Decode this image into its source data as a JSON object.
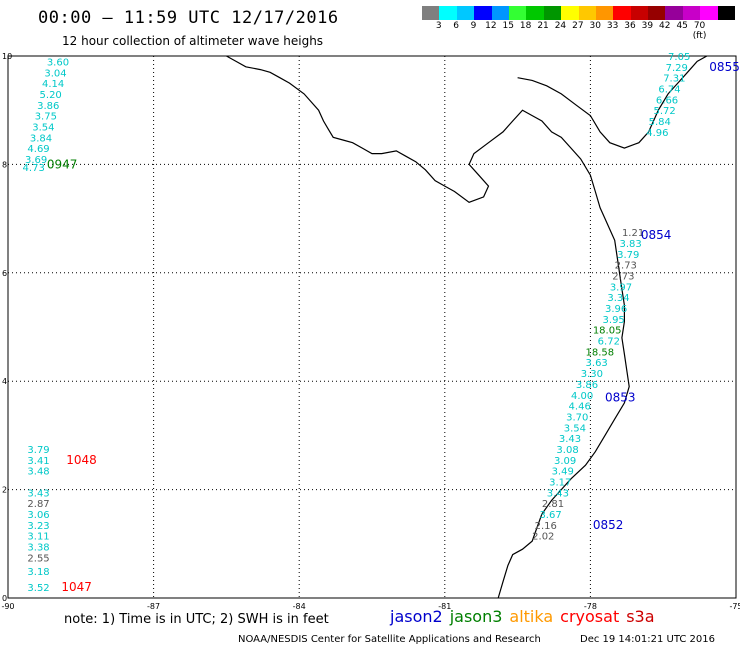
{
  "header": {
    "title": "00:00 – 11:59 UTC 12/17/2016",
    "subtitle": "12 hour collection of altimeter wave heighs"
  },
  "colorbar": {
    "colors": [
      "#7f7f7f",
      "#00ffff",
      "#00c8ff",
      "#0000ff",
      "#0096ff",
      "#33ff33",
      "#00c800",
      "#009600",
      "#ffff00",
      "#ffc800",
      "#ff9600",
      "#ff0000",
      "#c80000",
      "#960000",
      "#96009a",
      "#c800c8",
      "#ff00ff",
      "#000000"
    ],
    "labels": [
      "3",
      "6",
      "9",
      "12",
      "15",
      "18",
      "21",
      "24",
      "27",
      "30",
      "33",
      "36",
      "39",
      "42",
      "45",
      "70 (ft)"
    ]
  },
  "axes": {
    "lon_ticks": [
      "-90",
      "-87",
      "-84",
      "-81",
      "-78",
      "-75"
    ],
    "lat_ticks": [
      "0",
      "2",
      "4",
      "6",
      "8",
      "10"
    ]
  },
  "satellite_colors": {
    "jason2": "#0000cc",
    "jason3": "#007f00",
    "altika": "#ff9900",
    "cryosat": "#ff0000",
    "s3a": "#cc0000",
    "value_cyan": "#00c8c8",
    "value_gray": "#555555"
  },
  "tracks": [
    {
      "time": "0947",
      "color": "#007f00",
      "lon": -89.2,
      "lat": 8.0,
      "values": [
        {
          "v": "3.60",
          "lon": -89.2,
          "lat": 9.9,
          "c": "cyan"
        },
        {
          "v": "3.04",
          "lon": -89.25,
          "lat": 9.7,
          "c": "cyan"
        },
        {
          "v": "4.14",
          "lon": -89.3,
          "lat": 9.5,
          "c": "cyan"
        },
        {
          "v": "5.20",
          "lon": -89.35,
          "lat": 9.3,
          "c": "cyan"
        },
        {
          "v": "3.86",
          "lon": -89.4,
          "lat": 9.1,
          "c": "cyan"
        },
        {
          "v": "3.75",
          "lon": -89.45,
          "lat": 8.9,
          "c": "cyan"
        },
        {
          "v": "3.54",
          "lon": -89.5,
          "lat": 8.7,
          "c": "cyan"
        },
        {
          "v": "3.84",
          "lon": -89.55,
          "lat": 8.5,
          "c": "cyan"
        },
        {
          "v": "4.69",
          "lon": -89.6,
          "lat": 8.3,
          "c": "cyan"
        },
        {
          "v": "3.69",
          "lon": -89.65,
          "lat": 8.1,
          "c": "cyan"
        },
        {
          "v": "4.73",
          "lon": -89.7,
          "lat": 7.95,
          "c": "cyan"
        }
      ]
    },
    {
      "time": "0855",
      "color": "#0000cc",
      "lon": -75.55,
      "lat": 9.8,
      "values": [
        {
          "v": "7.05",
          "lon": -76.4,
          "lat": 10.0,
          "c": "cyan"
        },
        {
          "v": "7.29",
          "lon": -76.45,
          "lat": 9.8,
          "c": "cyan"
        },
        {
          "v": "7.31",
          "lon": -76.5,
          "lat": 9.6,
          "c": "cyan"
        },
        {
          "v": "6.74",
          "lon": -76.6,
          "lat": 9.4,
          "c": "cyan"
        },
        {
          "v": "6.66",
          "lon": -76.65,
          "lat": 9.2,
          "c": "cyan"
        },
        {
          "v": "5.72",
          "lon": -76.7,
          "lat": 9.0,
          "c": "cyan"
        },
        {
          "v": "5.84",
          "lon": -76.8,
          "lat": 8.8,
          "c": "cyan"
        },
        {
          "v": "4.96",
          "lon": -76.85,
          "lat": 8.6,
          "c": "cyan"
        }
      ]
    },
    {
      "time": "0854",
      "color": "#0000cc",
      "lon": -76.96,
      "lat": 6.7,
      "values": [
        {
          "v": "1.21",
          "lon": -77.35,
          "lat": 6.75,
          "c": "gray"
        },
        {
          "v": "3.83",
          "lon": -77.4,
          "lat": 6.55,
          "c": "cyan"
        },
        {
          "v": "3.79",
          "lon": -77.45,
          "lat": 6.35,
          "c": "cyan"
        },
        {
          "v": "2.73",
          "lon": -77.5,
          "lat": 6.15,
          "c": "gray"
        },
        {
          "v": "2.73",
          "lon": -77.55,
          "lat": 5.95,
          "c": "gray"
        },
        {
          "v": "3.97",
          "lon": -77.6,
          "lat": 5.75,
          "c": "cyan"
        },
        {
          "v": "3.34",
          "lon": -77.65,
          "lat": 5.55,
          "c": "cyan"
        },
        {
          "v": "3.96",
          "lon": -77.7,
          "lat": 5.35,
          "c": "cyan"
        },
        {
          "v": "3.95",
          "lon": -77.75,
          "lat": 5.15,
          "c": "cyan"
        },
        {
          "v": "18.05",
          "lon": -77.95,
          "lat": 4.95,
          "c": "green"
        },
        {
          "v": "6.72",
          "lon": -77.85,
          "lat": 4.75,
          "c": "cyan"
        },
        {
          "v": "18.58",
          "lon": -78.1,
          "lat": 4.55,
          "c": "green"
        }
      ]
    },
    {
      "time": "0853",
      "color": "#0000cc",
      "lon": -77.7,
      "lat": 3.7,
      "values": [
        {
          "v": "3.63",
          "lon": -78.1,
          "lat": 4.35,
          "c": "cyan"
        },
        {
          "v": "3.30",
          "lon": -78.2,
          "lat": 4.15,
          "c": "cyan"
        },
        {
          "v": "3.86",
          "lon": -78.3,
          "lat": 3.95,
          "c": "cyan"
        },
        {
          "v": "4.00",
          "lon": -78.4,
          "lat": 3.75,
          "c": "cyan"
        },
        {
          "v": "4.46",
          "lon": -78.45,
          "lat": 3.55,
          "c": "cyan"
        },
        {
          "v": "3.70",
          "lon": -78.5,
          "lat": 3.35,
          "c": "cyan"
        },
        {
          "v": "3.54",
          "lon": -78.55,
          "lat": 3.15,
          "c": "cyan"
        },
        {
          "v": "3.43",
          "lon": -78.65,
          "lat": 2.95,
          "c": "cyan"
        },
        {
          "v": "3.08",
          "lon": -78.7,
          "lat": 2.75,
          "c": "cyan"
        },
        {
          "v": "3.09",
          "lon": -78.75,
          "lat": 2.55,
          "c": "cyan"
        },
        {
          "v": "3.49",
          "lon": -78.8,
          "lat": 2.35,
          "c": "cyan"
        },
        {
          "v": "3.17",
          "lon": -78.85,
          "lat": 2.15,
          "c": "cyan"
        },
        {
          "v": "3.43",
          "lon": -78.9,
          "lat": 1.95,
          "c": "cyan"
        }
      ]
    },
    {
      "time": "0852",
      "color": "#0000cc",
      "lon": -77.95,
      "lat": 1.35,
      "values": [
        {
          "v": "2.81",
          "lon": -79.0,
          "lat": 1.75,
          "c": "gray"
        },
        {
          "v": "3.67",
          "lon": -79.05,
          "lat": 1.55,
          "c": "cyan"
        },
        {
          "v": "2.16",
          "lon": -79.15,
          "lat": 1.35,
          "c": "gray"
        },
        {
          "v": "2.02",
          "lon": -79.2,
          "lat": 1.15,
          "c": "gray"
        }
      ]
    },
    {
      "time": "1048",
      "color": "#ff0000",
      "lon": -88.8,
      "lat": 2.55,
      "values": [
        {
          "v": "3.79",
          "lon": -89.6,
          "lat": 2.75,
          "c": "cyan"
        },
        {
          "v": "3.41",
          "lon": -89.6,
          "lat": 2.55,
          "c": "cyan"
        },
        {
          "v": "3.48",
          "lon": -89.6,
          "lat": 2.35,
          "c": "cyan"
        },
        {
          "v": "3.43",
          "lon": -89.6,
          "lat": 1.95,
          "c": "cyan"
        },
        {
          "v": "2.87",
          "lon": -89.6,
          "lat": 1.75,
          "c": "gray"
        },
        {
          "v": "3.06",
          "lon": -89.6,
          "lat": 1.55,
          "c": "cyan"
        },
        {
          "v": "3.23",
          "lon": -89.6,
          "lat": 1.35,
          "c": "cyan"
        },
        {
          "v": "3.11",
          "lon": -89.6,
          "lat": 1.15,
          "c": "cyan"
        },
        {
          "v": "3.38",
          "lon": -89.6,
          "lat": 0.95,
          "c": "cyan"
        },
        {
          "v": "2.55",
          "lon": -89.6,
          "lat": 0.75,
          "c": "gray"
        },
        {
          "v": "3.18",
          "lon": -89.6,
          "lat": 0.5,
          "c": "cyan"
        }
      ]
    },
    {
      "time": "1047",
      "color": "#ff0000",
      "lon": -88.9,
      "lat": 0.2,
      "values": [
        {
          "v": "3.52",
          "lon": -89.6,
          "lat": 0.2,
          "c": "cyan"
        }
      ]
    }
  ],
  "coastline": [
    [
      -85.5,
      10.0
    ],
    [
      -85.3,
      9.9
    ],
    [
      -85.1,
      9.8
    ],
    [
      -84.8,
      9.75
    ],
    [
      -84.6,
      9.7
    ],
    [
      -84.4,
      9.6
    ],
    [
      -84.2,
      9.5
    ],
    [
      -83.9,
      9.3
    ],
    [
      -83.6,
      9.0
    ],
    [
      -83.5,
      8.8
    ],
    [
      -83.4,
      8.65
    ],
    [
      -83.3,
      8.5
    ],
    [
      -83.1,
      8.45
    ],
    [
      -82.9,
      8.4
    ],
    [
      -82.7,
      8.3
    ],
    [
      -82.5,
      8.2
    ],
    [
      -82.3,
      8.2
    ],
    [
      -82.0,
      8.25
    ],
    [
      -81.8,
      8.15
    ],
    [
      -81.6,
      8.05
    ],
    [
      -81.4,
      7.9
    ],
    [
      -81.2,
      7.7
    ],
    [
      -81.0,
      7.6
    ],
    [
      -80.8,
      7.5
    ],
    [
      -80.5,
      7.3
    ],
    [
      -80.2,
      7.4
    ],
    [
      -80.1,
      7.6
    ],
    [
      -80.3,
      7.8
    ],
    [
      -80.5,
      8.0
    ],
    [
      -80.4,
      8.2
    ],
    [
      -80.1,
      8.4
    ],
    [
      -79.8,
      8.6
    ],
    [
      -79.6,
      8.8
    ],
    [
      -79.4,
      9.0
    ],
    [
      -79.2,
      8.9
    ],
    [
      -79.0,
      8.8
    ],
    [
      -78.8,
      8.6
    ],
    [
      -78.6,
      8.5
    ],
    [
      -78.4,
      8.3
    ],
    [
      -78.2,
      8.1
    ],
    [
      -78.0,
      7.8
    ],
    [
      -77.9,
      7.5
    ],
    [
      -77.8,
      7.2
    ],
    [
      -77.7,
      7.0
    ],
    [
      -77.6,
      6.8
    ],
    [
      -77.5,
      6.6
    ],
    [
      -77.45,
      6.3
    ],
    [
      -77.4,
      6.0
    ],
    [
      -77.35,
      5.7
    ],
    [
      -77.3,
      5.4
    ],
    [
      -77.3,
      5.1
    ],
    [
      -77.35,
      4.8
    ],
    [
      -77.3,
      4.5
    ],
    [
      -77.25,
      4.2
    ],
    [
      -77.2,
      3.9
    ],
    [
      -77.3,
      3.6
    ],
    [
      -77.5,
      3.3
    ],
    [
      -77.7,
      3.0
    ],
    [
      -77.9,
      2.7
    ],
    [
      -78.1,
      2.45
    ],
    [
      -78.4,
      2.2
    ],
    [
      -78.6,
      2.0
    ],
    [
      -78.8,
      1.8
    ],
    [
      -79.0,
      1.55
    ],
    [
      -79.1,
      1.3
    ],
    [
      -79.2,
      1.05
    ],
    [
      -79.4,
      0.9
    ],
    [
      -79.6,
      0.8
    ],
    [
      -79.7,
      0.6
    ],
    [
      -79.8,
      0.3
    ],
    [
      -79.9,
      0.0
    ]
  ],
  "panama_north_coast": [
    [
      -79.5,
      9.6
    ],
    [
      -79.2,
      9.55
    ],
    [
      -78.9,
      9.45
    ],
    [
      -78.6,
      9.3
    ],
    [
      -78.3,
      9.1
    ],
    [
      -78.0,
      8.9
    ],
    [
      -77.8,
      8.6
    ],
    [
      -77.6,
      8.4
    ],
    [
      -77.3,
      8.3
    ],
    [
      -77.0,
      8.4
    ],
    [
      -76.8,
      8.6
    ],
    [
      -76.7,
      8.8
    ],
    [
      -76.6,
      9.0
    ],
    [
      -76.4,
      9.3
    ],
    [
      -76.2,
      9.5
    ],
    [
      -76.0,
      9.7
    ],
    [
      -75.8,
      9.9
    ],
    [
      -75.6,
      10.0
    ]
  ],
  "footer": {
    "note": "note: 1) Time is in UTC; 2) SWH is in feet",
    "legend": [
      "jason2",
      "jason3",
      "altika",
      "cryosat",
      "s3a"
    ],
    "credit": "NOAA/NESDIS Center for Satellite Applications and Research",
    "timestamp": "Dec 19 14:01:21 UTC 2016"
  }
}
